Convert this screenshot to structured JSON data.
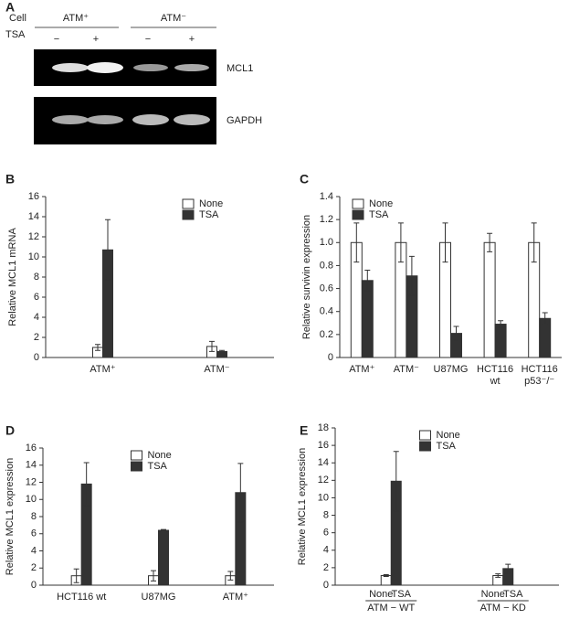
{
  "gel": {
    "panel": "A",
    "cell_label": "Cell",
    "tsa_label": "TSA",
    "groups": [
      "ATM⁺",
      "ATM⁻"
    ],
    "treatments": [
      "−",
      "+",
      "−",
      "+"
    ],
    "bands": [
      "MCL1",
      "GAPDH"
    ]
  },
  "chart_data": [
    {
      "panel": "B",
      "type": "bar",
      "ylabel": "Relative MCL1 mRNA",
      "categories": [
        "ATM⁺",
        "ATM⁻"
      ],
      "series": [
        {
          "name": "None",
          "color": "#ffffff",
          "values": [
            1.0,
            1.1
          ],
          "errors": [
            0.3,
            0.5
          ]
        },
        {
          "name": "TSA",
          "color": "#333333",
          "values": [
            10.7,
            0.6
          ],
          "errors": [
            3.0,
            0.1
          ]
        }
      ],
      "ylim": [
        0,
        16
      ],
      "yticks": [
        0,
        2,
        4,
        6,
        8,
        10,
        12,
        14,
        16
      ],
      "legend": "upper right"
    },
    {
      "panel": "C",
      "type": "bar",
      "ylabel": "Relative survivin expression",
      "categories": [
        [
          "ATM⁺"
        ],
        [
          "ATM⁻"
        ],
        [
          "U87MG"
        ],
        [
          "HCT116",
          "wt"
        ],
        [
          "HCT116",
          "p53⁻/⁻"
        ]
      ],
      "series": [
        {
          "name": "None",
          "color": "#ffffff",
          "values": [
            1.0,
            1.0,
            1.0,
            1.0,
            1.0
          ],
          "errors": [
            0.17,
            0.17,
            0.17,
            0.08,
            0.17
          ]
        },
        {
          "name": "TSA",
          "color": "#333333",
          "values": [
            0.67,
            0.71,
            0.21,
            0.29,
            0.34
          ],
          "errors": [
            0.09,
            0.17,
            0.06,
            0.03,
            0.05
          ]
        }
      ],
      "ylim": [
        0,
        1.4
      ],
      "yticks": [
        0,
        0.2,
        0.4,
        0.6,
        0.8,
        {
          "value": 1,
          "label": "1.0"
        },
        1.2,
        1.4
      ],
      "legend": "upper left"
    },
    {
      "panel": "D",
      "type": "bar",
      "ylabel": "Relative MCL1 expression",
      "categories": [
        "HCT116 wt",
        "U87MG",
        "ATM⁺"
      ],
      "series": [
        {
          "name": "None",
          "color": "#ffffff",
          "values": [
            1.1,
            1.1,
            1.1
          ],
          "errors": [
            0.8,
            0.6,
            0.5
          ]
        },
        {
          "name": "TSA",
          "color": "#333333",
          "values": [
            11.8,
            6.4,
            10.8
          ],
          "errors": [
            2.5,
            0.1,
            3.4
          ]
        }
      ],
      "ylim": [
        0,
        16
      ],
      "yticks": [
        0,
        2,
        4,
        6,
        8,
        10,
        12,
        14,
        16
      ],
      "legend": "upper center"
    },
    {
      "panel": "E",
      "type": "bar",
      "ylabel": "Relative MCL1 expression",
      "categories": [
        "ATM − WT",
        "ATM − KD"
      ],
      "sublabels": [
        [
          "None",
          "TSA"
        ],
        [
          "None",
          "TSA"
        ]
      ],
      "series": [
        {
          "name": "None",
          "color": "#ffffff",
          "values": [
            1.1,
            1.1
          ],
          "errors": [
            0.1,
            0.2
          ]
        },
        {
          "name": "TSA",
          "color": "#333333",
          "values": [
            11.9,
            1.9
          ],
          "errors": [
            3.4,
            0.5
          ]
        }
      ],
      "ylim": [
        0,
        18
      ],
      "yticks": [
        0,
        2,
        4,
        6,
        8,
        10,
        12,
        14,
        16,
        18
      ],
      "legend": "upper center"
    }
  ]
}
